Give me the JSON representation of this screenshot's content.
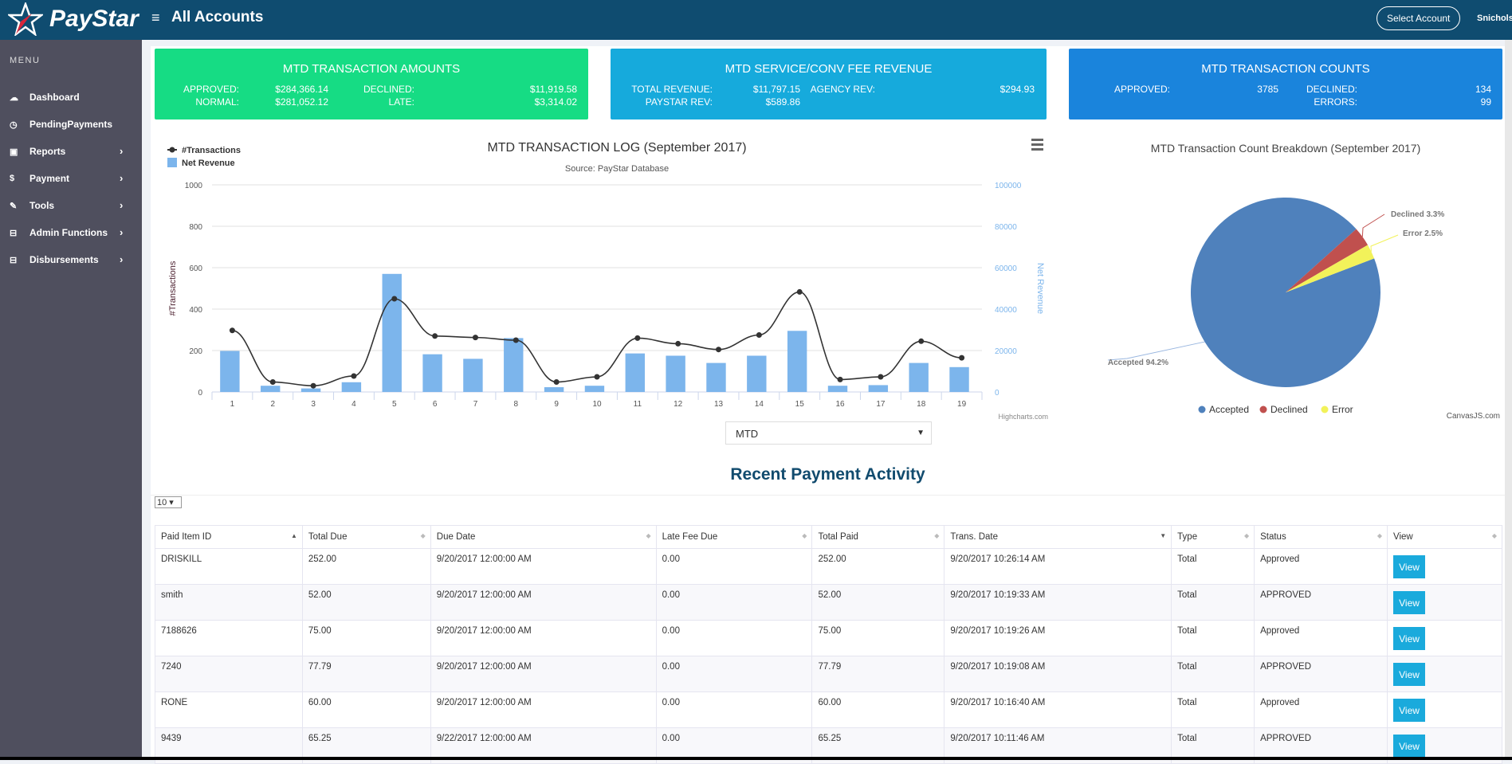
{
  "header": {
    "brand": "PayStar",
    "title": "All Accounts",
    "select_account": "Select Account",
    "user": "Snichols"
  },
  "sidebar": {
    "menu_label": "MENU",
    "items": [
      {
        "label": "Dashboard",
        "icon": "dashboard-icon",
        "glyph": "☁",
        "chevron": false
      },
      {
        "label": "PendingPayments",
        "icon": "clock-icon",
        "glyph": "◷",
        "chevron": false
      },
      {
        "label": "Reports",
        "icon": "briefcase-icon",
        "glyph": "▣",
        "chevron": true
      },
      {
        "label": "Payment",
        "icon": "dollar-icon",
        "glyph": "$",
        "chevron": true
      },
      {
        "label": "Tools",
        "icon": "wrench-icon",
        "glyph": "✎",
        "chevron": true
      },
      {
        "label": "Admin Functions",
        "icon": "panel-icon",
        "glyph": "⊟",
        "chevron": true
      },
      {
        "label": "Disbursements",
        "icon": "panel-icon",
        "glyph": "⊟",
        "chevron": true
      }
    ]
  },
  "cards": {
    "amounts": {
      "title": "MTD TRANSACTION AMOUNTS",
      "approved_label": "APPROVED:",
      "approved": "$284,366.14",
      "declined_label": "DECLINED:",
      "declined": "$11,919.58",
      "normal_label": "NORMAL:",
      "normal": "$281,052.12",
      "late_label": "LATE:",
      "late": "$3,314.02"
    },
    "revenue": {
      "title": "MTD SERVICE/CONV FEE REVENUE",
      "total_label": "TOTAL REVENUE:",
      "total": "$11,797.15",
      "agency_label": "AGENCY REV:",
      "agency": "$294.93",
      "paystar_label": "PAYSTAR REV:",
      "paystar": "$589.86"
    },
    "counts": {
      "title": "MTD TRANSACTION COUNTS",
      "approved_label": "APPROVED:",
      "approved": "3785",
      "declined_label": "DECLINED:",
      "declined": "134",
      "errors_label": "ERRORS:",
      "errors": "99"
    }
  },
  "chart_data": [
    {
      "type": "bar+line",
      "title": "MTD TRANSACTION LOG (September 2017)",
      "subtitle": "Source: PayStar Database",
      "credit": "Highcharts.com",
      "categories": [
        "1",
        "2",
        "3",
        "4",
        "5",
        "6",
        "7",
        "8",
        "9",
        "10",
        "11",
        "12",
        "13",
        "14",
        "15",
        "16",
        "17",
        "18",
        "19"
      ],
      "ylabel": "#Transactions",
      "ylabel_right": "Net Revenue",
      "ylim": [
        0,
        1000
      ],
      "ylim_right": [
        0,
        100000
      ],
      "yticks": [
        "0",
        "200",
        "400",
        "600",
        "800",
        "1000"
      ],
      "yticks_right": [
        "0",
        "20000",
        "40000",
        "60000",
        "80000",
        "100000"
      ],
      "grid": true,
      "legend_placement": "top-left",
      "series": [
        {
          "name": "#Transactions",
          "type": "spline",
          "axis": "left",
          "color": "#333333",
          "values": [
            297,
            48,
            30,
            77,
            450,
            270,
            263,
            250,
            48,
            73,
            260,
            233,
            205,
            275,
            483,
            60,
            73,
            245,
            165
          ]
        },
        {
          "name": "Net Revenue",
          "type": "column",
          "axis": "right",
          "color": "#7cb5ec",
          "values": [
            19800,
            3000,
            1700,
            4700,
            57000,
            18200,
            16000,
            26000,
            2300,
            3000,
            18600,
            17500,
            14000,
            17500,
            29500,
            3000,
            3300,
            14000,
            12000
          ]
        }
      ]
    },
    {
      "type": "pie",
      "title": "MTD Transaction Count Breakdown (September 2017)",
      "credit": "CanvasJS.com",
      "legend_placement": "bottom",
      "slices": [
        {
          "name": "Accepted",
          "value": 94.2,
          "label": "Accepted 94.2%",
          "color": "#4f81bc"
        },
        {
          "name": "Declined",
          "value": 3.3,
          "label": "Declined 3.3%",
          "color": "#c0504e"
        },
        {
          "name": "Error",
          "value": 2.5,
          "label": "Error 2.5%",
          "color": "#f2f25a"
        }
      ]
    }
  ],
  "range_select": "MTD",
  "activity": {
    "title": "Recent Payment Activity",
    "page_length": "10",
    "columns": [
      "Paid Item ID",
      "Total Due",
      "Due Date",
      "Late Fee Due",
      "Total Paid",
      "Trans. Date",
      "Type",
      "Status",
      "View"
    ],
    "rows": [
      [
        "DRISKILL",
        "252.00",
        "9/20/2017 12:00:00 AM",
        "0.00",
        "252.00",
        "9/20/2017 10:26:14 AM",
        "Total",
        "Approved"
      ],
      [
        "smith",
        "52.00",
        "9/20/2017 12:00:00 AM",
        "0.00",
        "52.00",
        "9/20/2017 10:19:33 AM",
        "Total",
        "APPROVED"
      ],
      [
        "7188626",
        "75.00",
        "9/20/2017 12:00:00 AM",
        "0.00",
        "75.00",
        "9/20/2017 10:19:26 AM",
        "Total",
        "Approved"
      ],
      [
        "7240",
        "77.79",
        "9/20/2017 12:00:00 AM",
        "0.00",
        "77.79",
        "9/20/2017 10:19:08 AM",
        "Total",
        "APPROVED"
      ],
      [
        "RONE",
        "60.00",
        "9/20/2017 12:00:00 AM",
        "0.00",
        "60.00",
        "9/20/2017 10:16:40 AM",
        "Total",
        "Approved"
      ],
      [
        "9439",
        "65.25",
        "9/22/2017 12:00:00 AM",
        "0.00",
        "65.25",
        "9/20/2017 10:11:46 AM",
        "Total",
        "APPROVED"
      ]
    ],
    "view_label": "View"
  }
}
